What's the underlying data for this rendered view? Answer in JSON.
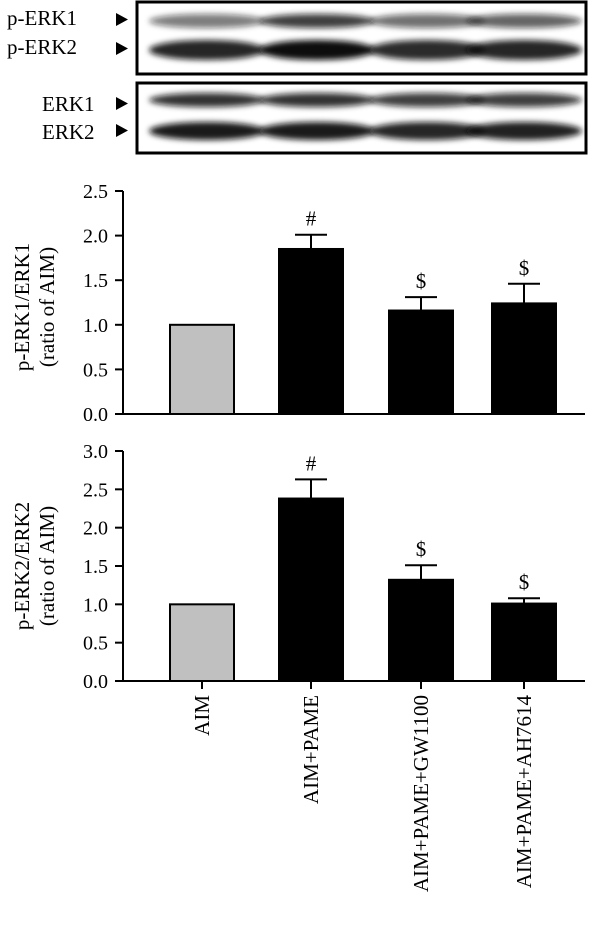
{
  "blots": [
    {
      "upper_label": "p-ERK1",
      "lower_label": "p-ERK2"
    },
    {
      "upper_label": "ERK1",
      "lower_label": "ERK2"
    }
  ],
  "colors": {
    "control_bar": "#c0c0c0",
    "treatment_bar": "#000000",
    "blot_band": "#111111"
  },
  "chart_data": [
    {
      "type": "bar",
      "categories": [
        "AIM",
        "AIM+PAME",
        "AIM+PAME+GW1100",
        "AIM+PAME+AH7614"
      ],
      "values": [
        1.0,
        1.85,
        1.16,
        1.24
      ],
      "errors": [
        0,
        0.16,
        0.15,
        0.22
      ],
      "annotations": [
        "",
        "#",
        "$",
        "$"
      ],
      "ylabel_line1": "p-ERK1/ERK1",
      "ylabel_line2": "(ratio of AIM)",
      "ylim": [
        0,
        2.5
      ],
      "yticks": [
        "0.0",
        "0.5",
        "1.0",
        "1.5",
        "2.0",
        "2.5"
      ],
      "bar_colors": [
        "#c0c0c0",
        "#000000",
        "#000000",
        "#000000"
      ]
    },
    {
      "type": "bar",
      "categories": [
        "AIM",
        "AIM+PAME",
        "AIM+PAME+GW1100",
        "AIM+PAME+AH7614"
      ],
      "values": [
        1.0,
        2.38,
        1.32,
        1.01
      ],
      "errors": [
        0,
        0.25,
        0.19,
        0.07
      ],
      "annotations": [
        "",
        "#",
        "$",
        "$"
      ],
      "ylabel_line1": "p-ERK2/ERK2",
      "ylabel_line2": "(ratio of AIM)",
      "ylim": [
        0,
        3.0
      ],
      "yticks": [
        "0.0",
        "0.5",
        "1.0",
        "1.5",
        "2.0",
        "2.5",
        "3.0"
      ],
      "bar_colors": [
        "#c0c0c0",
        "#000000",
        "#000000",
        "#000000"
      ]
    }
  ]
}
